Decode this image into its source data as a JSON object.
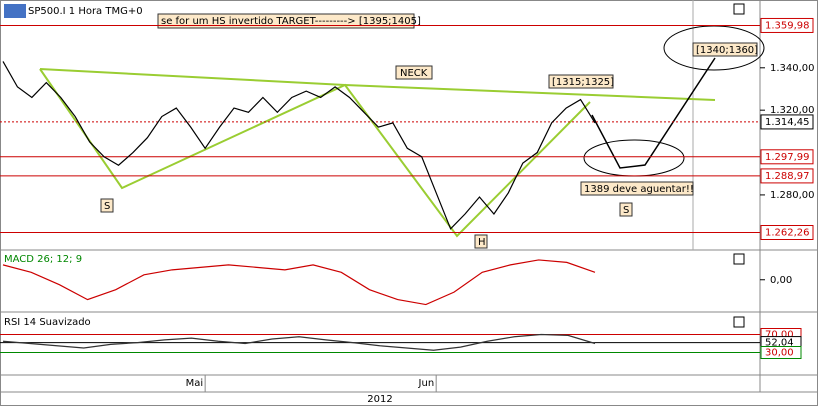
{
  "header": {
    "title": "SP500.I 1 Hora TMG+0"
  },
  "price_panel": {
    "range": [
      1254,
      1372
    ],
    "ticks": [
      {
        "value": 1340,
        "label": "1.340,00"
      },
      {
        "value": 1320,
        "label": "1.320,00"
      },
      {
        "value": 1280,
        "label": "1.280,00"
      }
    ],
    "levels": [
      {
        "value": 1359.98,
        "label": "1.359,98",
        "color": "#cc0000"
      },
      {
        "value": 1314.45,
        "label": "1.314,45",
        "color": "#000000"
      },
      {
        "value": 1297.99,
        "label": "1.297,99",
        "color": "#cc0000"
      },
      {
        "value": 1288.97,
        "label": "1.288,97",
        "color": "#cc0000"
      },
      {
        "value": 1262.26,
        "label": "1.262,26",
        "color": "#cc0000"
      }
    ],
    "closes": [
      1343,
      1331,
      1326,
      1333,
      1326,
      1317,
      1305,
      1298,
      1294,
      1300,
      1307,
      1317,
      1321,
      1312,
      1302,
      1312,
      1321,
      1319,
      1326,
      1319,
      1326,
      1329,
      1326,
      1331,
      1326,
      1319,
      1312,
      1314,
      1302,
      1298,
      1281,
      1264,
      1271,
      1279,
      1271,
      1281,
      1295,
      1300,
      1314,
      1321,
      1325,
      1314
    ],
    "annotations": {
      "target": "se for um HS invertido TARGET--------->  [1395;1405]",
      "neck": "NECK",
      "head_zone": "[1315;1325]",
      "target_zone": "[1340;1360]",
      "support": "1389 deve aguentar!!",
      "left_shoulder": "S",
      "right_shoulder": "S",
      "head": "H"
    }
  },
  "macd_panel": {
    "title": "MACD 26; 12; 9",
    "range": [
      -13,
      12
    ],
    "ticks": [
      {
        "value": 0,
        "label": "0,00"
      }
    ],
    "values": [
      6,
      3,
      -2,
      -8,
      -4,
      2,
      4,
      5,
      6,
      5,
      4,
      6,
      3,
      -4,
      -8,
      -10,
      -5,
      3,
      6,
      8,
      7,
      3
    ]
  },
  "rsi_panel": {
    "title": "RSI 14 Suavizado",
    "range": [
      -20,
      120
    ],
    "ticks": [
      {
        "value": 70,
        "label": "70,00"
      },
      {
        "value": 52.04,
        "label": "52,04"
      },
      {
        "value": 30,
        "label": "30,00"
      }
    ],
    "values": [
      55,
      50,
      45,
      40,
      48,
      52,
      58,
      62,
      55,
      50,
      60,
      65,
      58,
      52,
      45,
      40,
      35,
      42,
      55,
      65,
      70,
      68,
      50
    ]
  },
  "time_axis": {
    "months": [
      {
        "label": "Mai",
        "index": 14
      },
      {
        "label": "Jun",
        "index": 30
      }
    ],
    "year": "2012"
  }
}
